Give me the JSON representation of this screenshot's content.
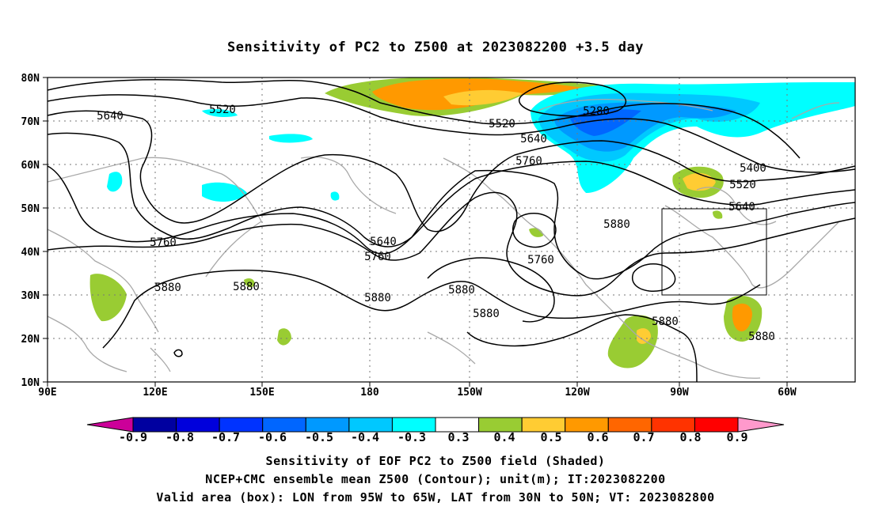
{
  "title": "Sensitivity of PC2 to Z500 at 2023082200 +3.5 day",
  "map": {
    "lat_labels": [
      "80N",
      "70N",
      "60N",
      "50N",
      "40N",
      "30N",
      "20N",
      "10N"
    ],
    "lon_labels": [
      "90E",
      "120E",
      "150E",
      "180",
      "150W",
      "120W",
      "90W",
      "60W"
    ],
    "contour_labels": [
      {
        "text": "5520"
      },
      {
        "text": "5640"
      },
      {
        "text": "5520"
      },
      {
        "text": "5280"
      },
      {
        "text": "5640"
      },
      {
        "text": "5760"
      },
      {
        "text": "5400"
      },
      {
        "text": "5520"
      },
      {
        "text": "5640"
      },
      {
        "text": "5760"
      },
      {
        "text": "5640"
      },
      {
        "text": "5760"
      },
      {
        "text": "5880"
      },
      {
        "text": "5880"
      },
      {
        "text": "5880"
      },
      {
        "text": "5880"
      },
      {
        "text": "5760"
      },
      {
        "text": "5880"
      },
      {
        "text": "5880"
      },
      {
        "text": "5880"
      },
      {
        "text": "5880"
      }
    ],
    "box": {
      "lon_from": "95W",
      "lon_to": "65W",
      "lat_from": "30N",
      "lat_to": "50N"
    }
  },
  "colorbar": {
    "labels": [
      "-0.9",
      "-0.8",
      "-0.7",
      "-0.6",
      "-0.5",
      "-0.4",
      "-0.3",
      "0.3",
      "0.4",
      "0.5",
      "0.6",
      "0.7",
      "0.8",
      "0.9"
    ],
    "colors": [
      "#0000a0",
      "#0000dc",
      "#0033ff",
      "#0066ff",
      "#0099ff",
      "#00c8ff",
      "#00ffff",
      "#ffffff",
      "#99cc33",
      "#ffcc33",
      "#ff9900",
      "#ff6600",
      "#ff3300",
      "#ff0000"
    ],
    "low_end_color": "#cc0099",
    "high_end_color": "#ff99cc"
  },
  "footer": {
    "line1": "Sensitivity of EOF PC2 to Z500 field (Shaded)",
    "line2": "NCEP+CMC ensemble mean Z500 (Contour); unit(m); IT:2023082200",
    "line3": "Valid area (box): LON from 95W to 65W, LAT from 30N to 50N; VT: 2023082800"
  }
}
